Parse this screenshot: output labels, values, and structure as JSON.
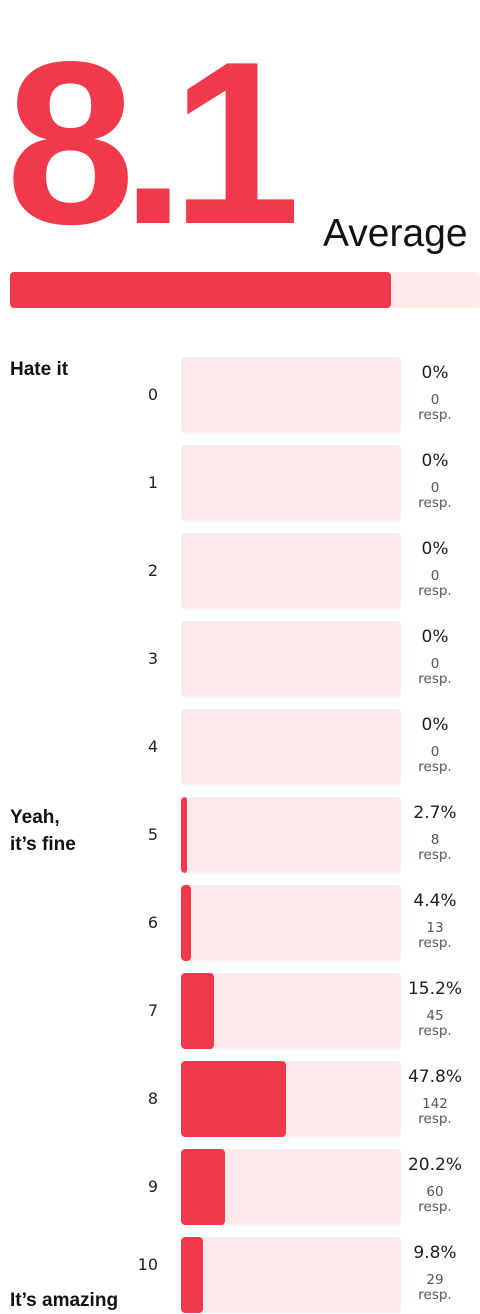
{
  "summary": {
    "score": "8.1",
    "label": "Average",
    "score_fraction": 0.81
  },
  "scale_labels": {
    "low": "Hate it",
    "mid_line1": "Yeah,",
    "mid_line2": "it’s fine",
    "high": "It’s amazing"
  },
  "colors": {
    "accent": "#f2394b",
    "track": "#fdeaea"
  },
  "chart_data": {
    "type": "bar",
    "orientation": "horizontal",
    "categories": [
      "0",
      "1",
      "2",
      "3",
      "4",
      "5",
      "6",
      "7",
      "8",
      "9",
      "10"
    ],
    "values": [
      0,
      0,
      0,
      0,
      0,
      2.7,
      4.4,
      15.2,
      47.8,
      20.2,
      9.8
    ],
    "percent_labels": [
      "0%",
      "0%",
      "0%",
      "0%",
      "0%",
      "2.7%",
      "4.4%",
      "15.2%",
      "47.8%",
      "20.2%",
      "9.8%"
    ],
    "responses": [
      0,
      0,
      0,
      0,
      0,
      8,
      13,
      45,
      142,
      60,
      29
    ],
    "response_unit": "resp.",
    "ylim": [
      0,
      100
    ]
  }
}
